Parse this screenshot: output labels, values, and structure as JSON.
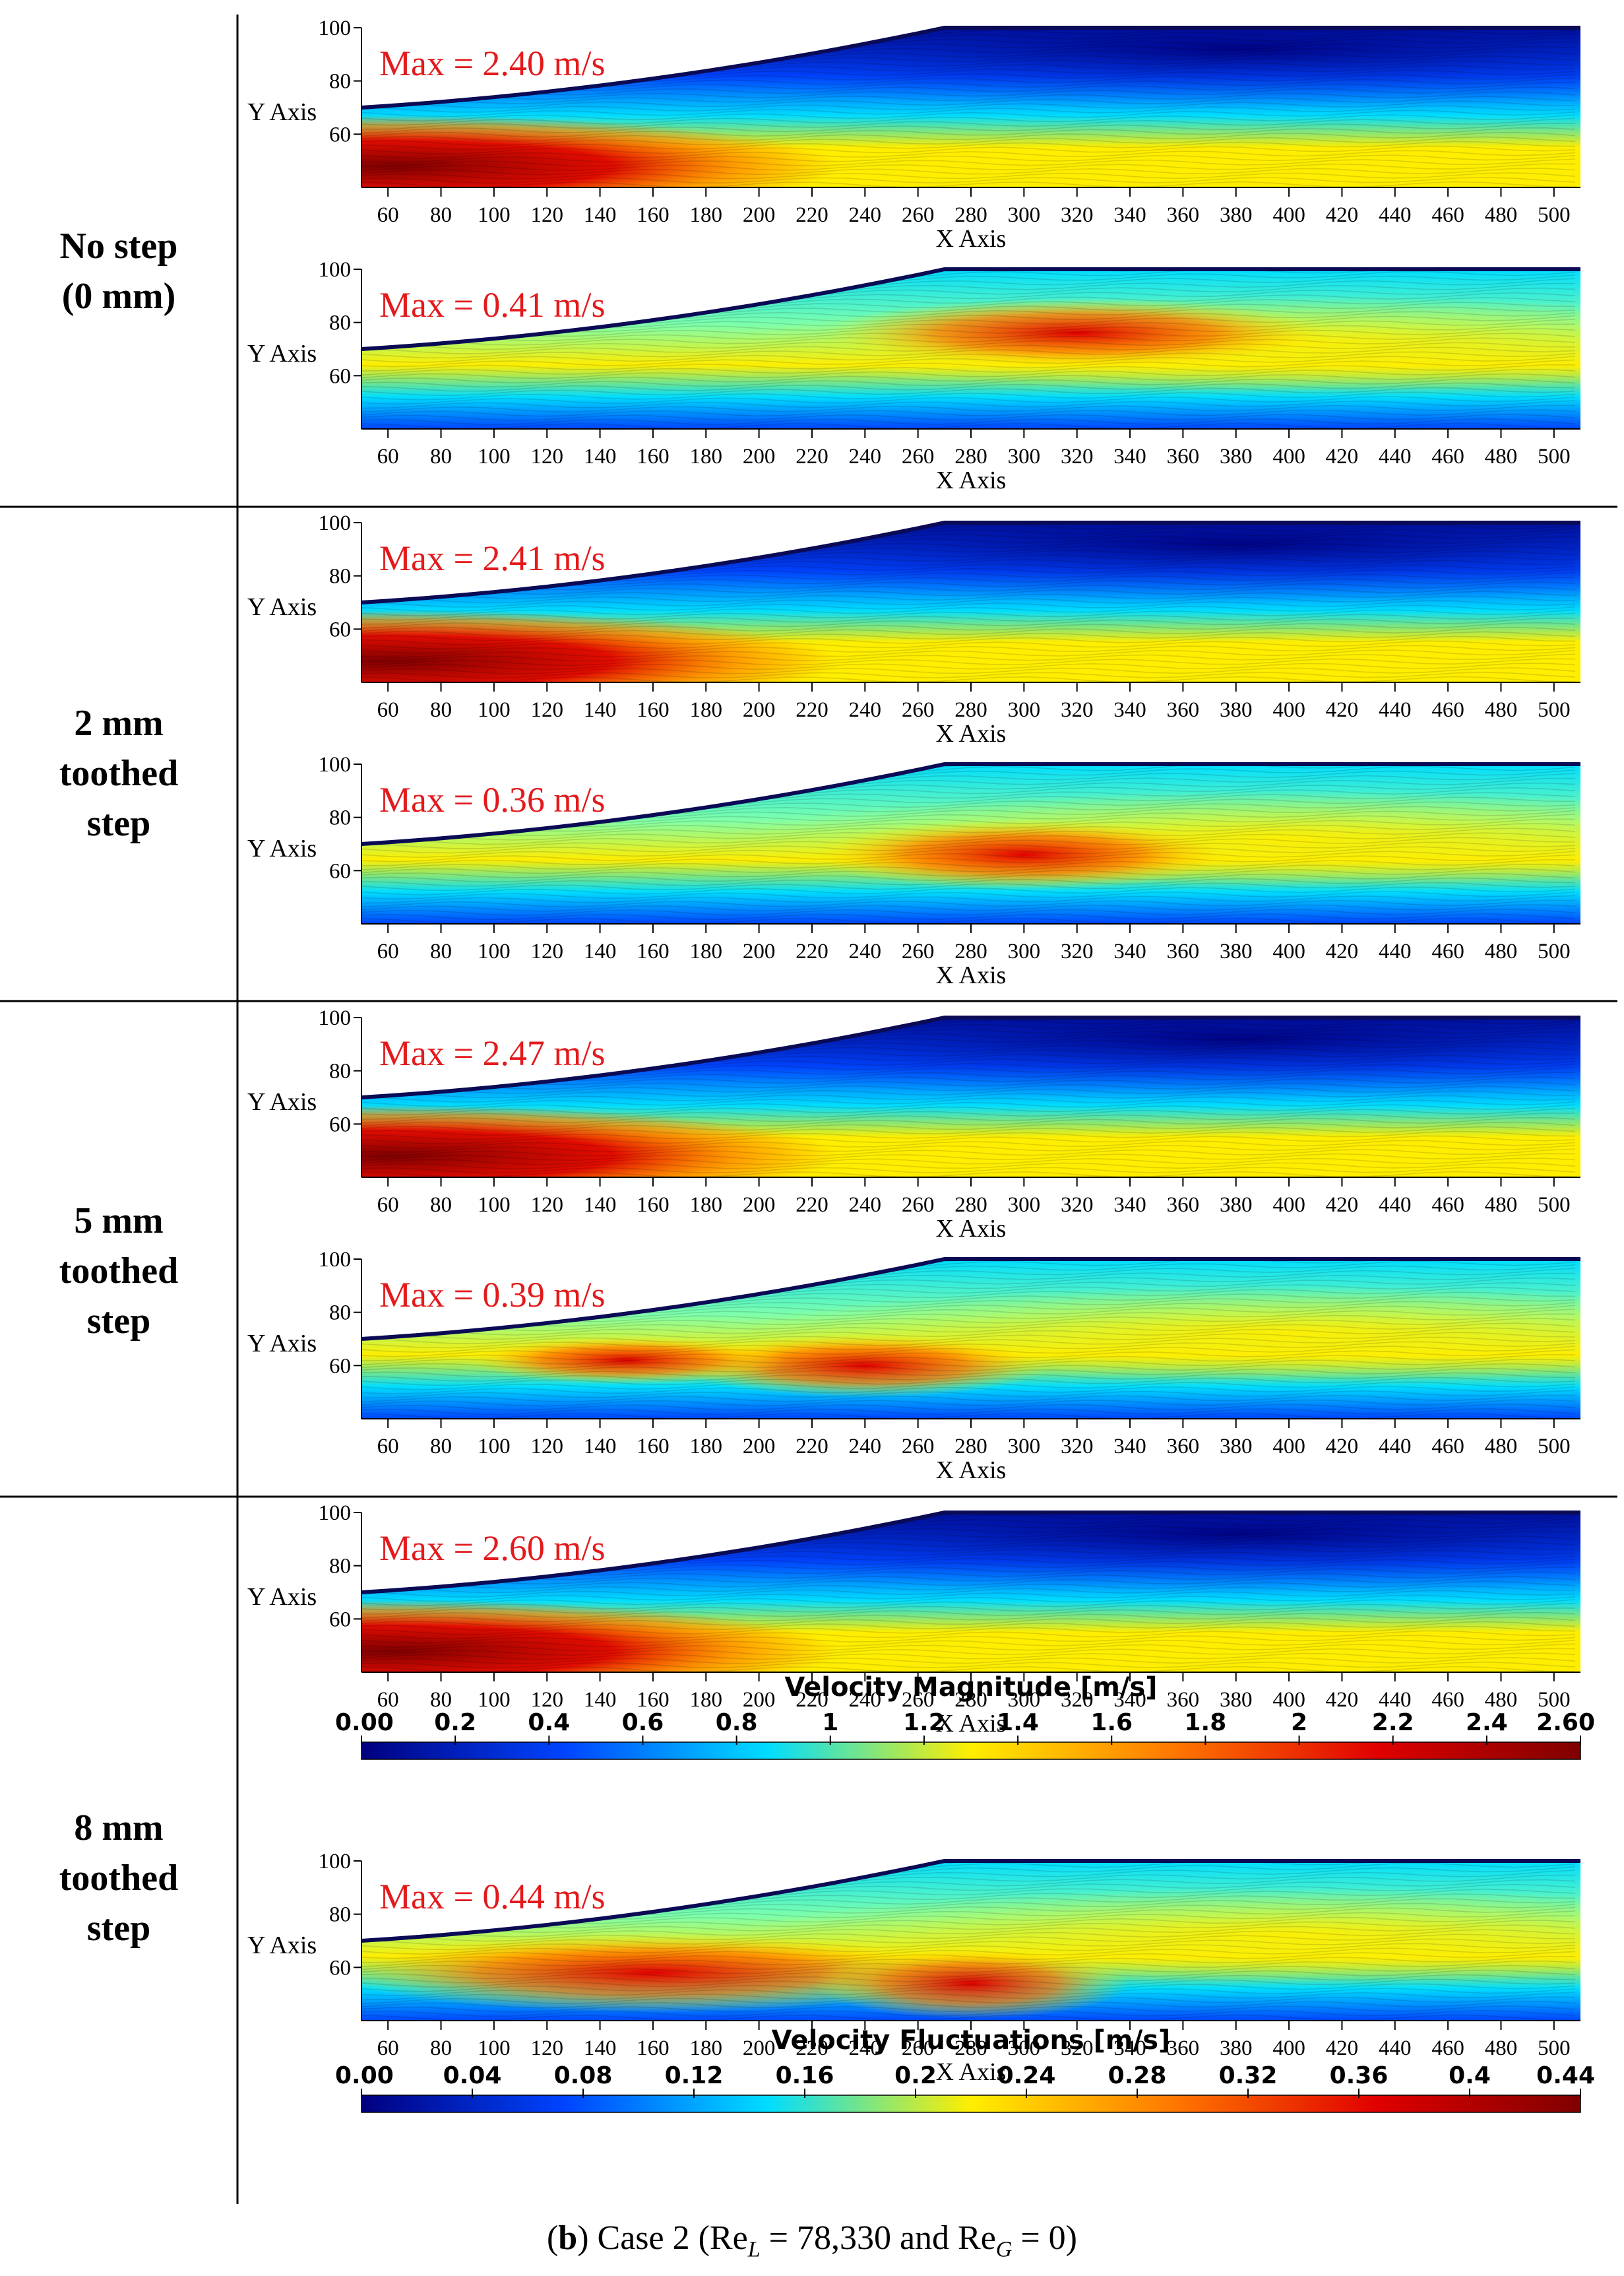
{
  "row_labels": [
    {
      "line1": "No step",
      "line2": "(0 mm)",
      "line3": ""
    },
    {
      "line1": "2 mm",
      "line2": "toothed",
      "line3": "step"
    },
    {
      "line1": "5 mm",
      "line2": "toothed",
      "line3": "step"
    },
    {
      "line1": "8 mm",
      "line2": "toothed",
      "line3": "step"
    }
  ],
  "caption": {
    "prefix": "(",
    "bold": "b",
    "middle": ") Case 2 (Re",
    "sub1": "L",
    "mid2": " = 78,330 and Re",
    "sub2": "G",
    "suffix": " = 0)"
  },
  "chart_data": [
    {
      "type": "heatmap",
      "row": "No step (0 mm)",
      "quantity": "Velocity Magnitude",
      "annotation": "Max = 2.40 m/s",
      "xlabel": "X Axis",
      "ylabel": "Y Axis",
      "xlim": [
        50,
        510
      ],
      "ylim": [
        40,
        100
      ],
      "xticks": [
        "60",
        "80",
        "100",
        "120",
        "140",
        "160",
        "180",
        "200",
        "220",
        "240",
        "260",
        "280",
        "300",
        "320",
        "340",
        "360",
        "380",
        "400",
        "420",
        "440",
        "460",
        "480",
        "500"
      ],
      "yticks": [
        "60",
        "80",
        "100"
      ]
    },
    {
      "type": "heatmap",
      "row": "No step (0 mm)",
      "quantity": "Velocity Fluctuations",
      "annotation": "Max = 0.41 m/s",
      "xlabel": "X Axis",
      "ylabel": "Y Axis",
      "xlim": [
        50,
        510
      ],
      "ylim": [
        40,
        100
      ],
      "xticks": [
        "60",
        "80",
        "100",
        "120",
        "140",
        "160",
        "180",
        "200",
        "220",
        "240",
        "260",
        "280",
        "300",
        "320",
        "340",
        "360",
        "380",
        "400",
        "420",
        "440",
        "460",
        "480",
        "500"
      ],
      "yticks": [
        "60",
        "80",
        "100"
      ]
    },
    {
      "type": "heatmap",
      "row": "2 mm toothed step",
      "quantity": "Velocity Magnitude",
      "annotation": "Max = 2.41 m/s",
      "xlabel": "X Axis",
      "ylabel": "Y Axis",
      "xlim": [
        50,
        510
      ],
      "ylim": [
        40,
        100
      ],
      "xticks": [
        "60",
        "80",
        "100",
        "120",
        "140",
        "160",
        "180",
        "200",
        "220",
        "240",
        "260",
        "280",
        "300",
        "320",
        "340",
        "360",
        "380",
        "400",
        "420",
        "440",
        "460",
        "480",
        "500"
      ],
      "yticks": [
        "60",
        "80",
        "100"
      ]
    },
    {
      "type": "heatmap",
      "row": "2 mm toothed step",
      "quantity": "Velocity Fluctuations",
      "annotation": "Max = 0.36 m/s",
      "xlabel": "X Axis",
      "ylabel": "Y Axis",
      "xlim": [
        50,
        510
      ],
      "ylim": [
        40,
        100
      ],
      "xticks": [
        "60",
        "80",
        "100",
        "120",
        "140",
        "160",
        "180",
        "200",
        "220",
        "240",
        "260",
        "280",
        "300",
        "320",
        "340",
        "360",
        "380",
        "400",
        "420",
        "440",
        "460",
        "480",
        "500"
      ],
      "yticks": [
        "60",
        "80",
        "100"
      ]
    },
    {
      "type": "heatmap",
      "row": "5 mm toothed step",
      "quantity": "Velocity Magnitude",
      "annotation": "Max = 2.47 m/s",
      "xlabel": "X Axis",
      "ylabel": "Y Axis",
      "xlim": [
        50,
        510
      ],
      "ylim": [
        40,
        100
      ],
      "xticks": [
        "60",
        "80",
        "100",
        "120",
        "140",
        "160",
        "180",
        "200",
        "220",
        "240",
        "260",
        "280",
        "300",
        "320",
        "340",
        "360",
        "380",
        "400",
        "420",
        "440",
        "460",
        "480",
        "500"
      ],
      "yticks": [
        "60",
        "80",
        "100"
      ]
    },
    {
      "type": "heatmap",
      "row": "5 mm toothed step",
      "quantity": "Velocity Fluctuations",
      "annotation": "Max = 0.39 m/s",
      "xlabel": "X Axis",
      "ylabel": "Y Axis",
      "xlim": [
        50,
        510
      ],
      "ylim": [
        40,
        100
      ],
      "xticks": [
        "60",
        "80",
        "100",
        "120",
        "140",
        "160",
        "180",
        "200",
        "220",
        "240",
        "260",
        "280",
        "300",
        "320",
        "340",
        "360",
        "380",
        "400",
        "420",
        "440",
        "460",
        "480",
        "500"
      ],
      "yticks": [
        "60",
        "80",
        "100"
      ]
    },
    {
      "type": "heatmap",
      "row": "8 mm toothed step",
      "quantity": "Velocity Magnitude",
      "annotation": "Max = 2.60 m/s",
      "xlabel": "X Axis",
      "ylabel": "Y Axis",
      "xlim": [
        50,
        510
      ],
      "ylim": [
        40,
        100
      ],
      "xticks": [
        "60",
        "80",
        "100",
        "120",
        "140",
        "160",
        "180",
        "200",
        "220",
        "240",
        "260",
        "280",
        "300",
        "320",
        "340",
        "360",
        "380",
        "400",
        "420",
        "440",
        "460",
        "480",
        "500"
      ],
      "yticks": [
        "60",
        "80",
        "100"
      ]
    },
    {
      "type": "heatmap",
      "row": "8 mm toothed step",
      "quantity": "Velocity Fluctuations",
      "annotation": "Max = 0.44 m/s",
      "xlabel": "X Axis",
      "ylabel": "Y Axis",
      "xlim": [
        50,
        510
      ],
      "ylim": [
        40,
        100
      ],
      "xticks": [
        "60",
        "80",
        "100",
        "120",
        "140",
        "160",
        "180",
        "200",
        "220",
        "240",
        "260",
        "280",
        "300",
        "320",
        "340",
        "360",
        "380",
        "400",
        "420",
        "440",
        "460",
        "480",
        "500"
      ],
      "yticks": [
        "60",
        "80",
        "100"
      ]
    }
  ],
  "colorbars": [
    {
      "title": "Velocity Magnitude [m/s]",
      "range": [
        0,
        2.6
      ],
      "tick_labels": [
        "0.00",
        "0.2",
        "0.4",
        "0.6",
        "0.8",
        "1",
        "1.2",
        "1.4",
        "1.6",
        "1.8",
        "2",
        "2.2",
        "2.4",
        "2.60"
      ]
    },
    {
      "title": "Velocity Fluctuations [m/s]",
      "range": [
        0,
        0.44
      ],
      "tick_labels": [
        "0.00",
        "0.04",
        "0.08",
        "0.12",
        "0.16",
        "0.2",
        "0.24",
        "0.28",
        "0.32",
        "0.36",
        "0.4",
        "0.44"
      ]
    }
  ],
  "colors": {
    "annotation": "#e31a1c",
    "jet_dark_blue": "#00007f",
    "jet_blue": "#0044ff",
    "jet_cyan": "#00ddff",
    "jet_yellow": "#ffee00",
    "jet_orange": "#ff7700",
    "jet_red": "#e00000",
    "jet_dark_red": "#7f0000"
  }
}
